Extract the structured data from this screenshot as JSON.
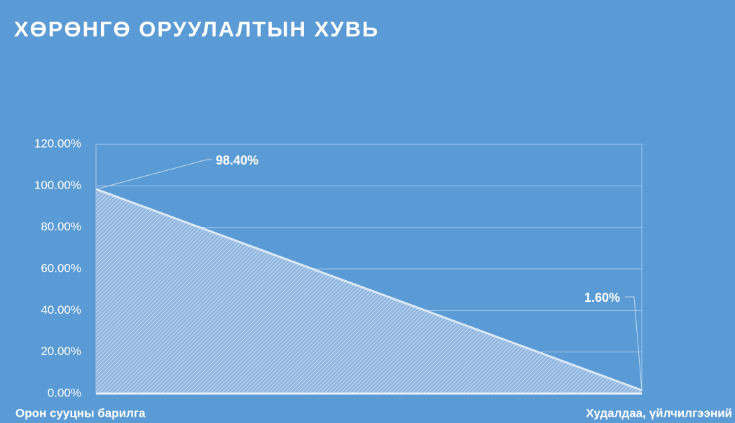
{
  "chart_data": {
    "type": "area",
    "title": "ХӨРӨНГӨ ОРУУЛАЛТЫН ХУВЬ",
    "categories": [
      "Орон сууцны барилга",
      "Худалдаа, үйлчилгээний"
    ],
    "values": [
      98.4,
      1.6
    ],
    "value_labels": [
      "98.40%",
      "1.60%"
    ],
    "color": "#dce9f6",
    "ylim": [
      0,
      120
    ],
    "yticks": [
      {
        "value": 0,
        "label": "0.00%"
      },
      {
        "value": 20,
        "label": "20.00%"
      },
      {
        "value": 40,
        "label": "40.00%"
      },
      {
        "value": 60,
        "label": "60.00%"
      },
      {
        "value": 80,
        "label": "80.00%"
      },
      {
        "value": 100,
        "label": "100.00%"
      },
      {
        "value": 120,
        "label": "120.00%"
      }
    ],
    "grid": true
  }
}
